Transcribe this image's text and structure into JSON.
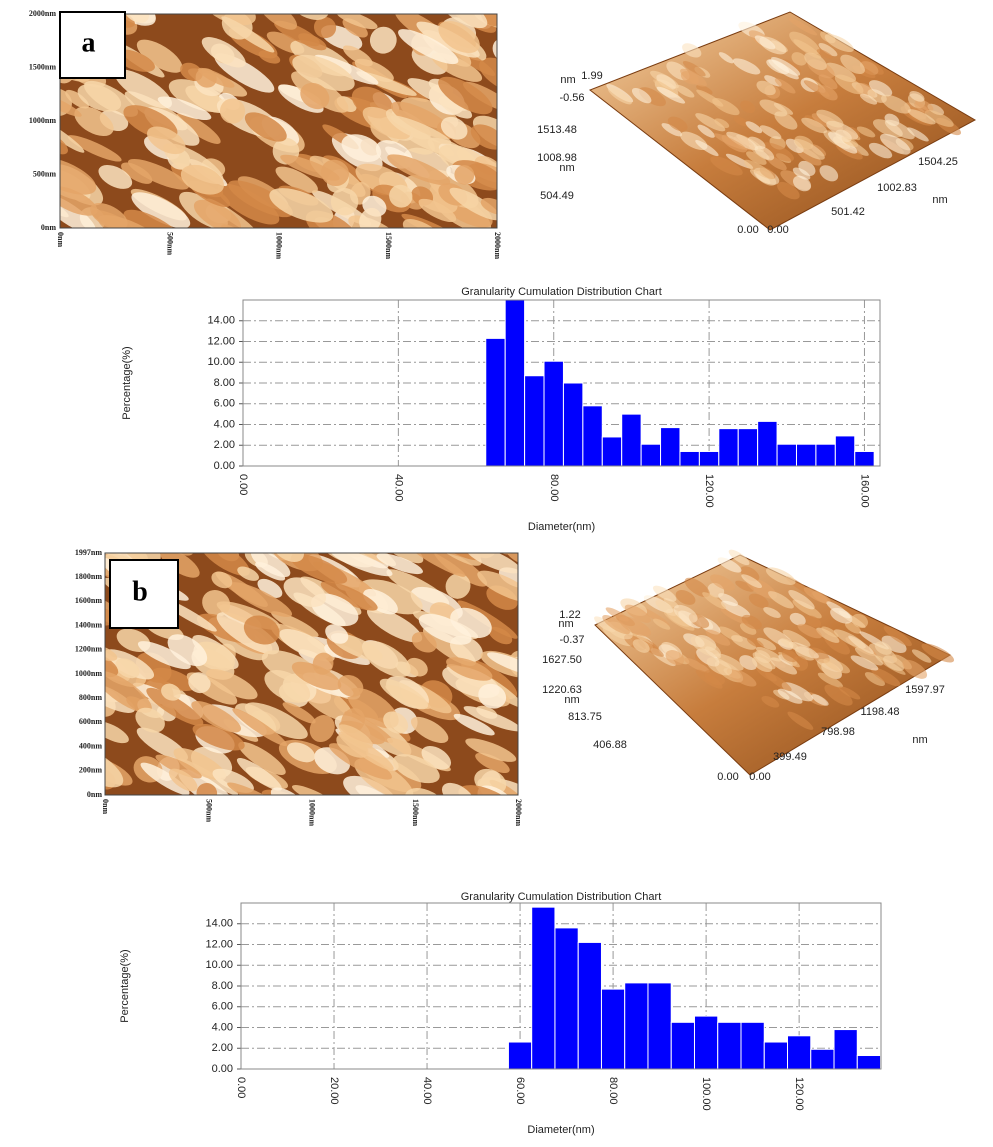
{
  "panels": [
    {
      "label": "a",
      "image_y_labels": [
        "2000nm",
        "1500nm",
        "1000nm",
        "500nm",
        "0nm"
      ],
      "image_x_labels": [
        "0nm",
        "500nm",
        "1000nm",
        "1500nm",
        "2000nm"
      ],
      "surface_labels": [
        "nm",
        "1.99",
        "-0.56",
        "1513.48",
        "1008.98",
        "nm",
        "504.49",
        "0.00",
        "0.00",
        "501.42",
        "1002.83",
        "1504.25",
        "nm"
      ]
    },
    {
      "label": "b",
      "image_y_labels": [
        "1997nm",
        "1800nm",
        "1600nm",
        "1400nm",
        "1200nm",
        "1000nm",
        "800nm",
        "600nm",
        "400nm",
        "200nm",
        "0nm"
      ],
      "image_x_labels": [
        "0nm",
        "500nm",
        "1000nm",
        "1500nm",
        "2000nm"
      ],
      "surface_labels": [
        "1.22",
        "nm",
        "-0.37",
        "1627.50",
        "1220.63",
        "nm",
        "813.75",
        "406.88",
        "0.00",
        "0.00",
        "399.49",
        "798.98",
        "1198.48",
        "1597.97",
        "nm"
      ]
    }
  ],
  "chart_data": [
    {
      "type": "histogram",
      "title": "Granularity Cumulation Distribution  Chart",
      "x_label": "Diameter(nm)",
      "y_label": "Percentage(%)",
      "color": "#0000ff",
      "grid": true,
      "bins": [
        62.5,
        67.5,
        72.5,
        77.5,
        82.5,
        87.5,
        92.5,
        97.5,
        102.5,
        107.5,
        112.5,
        117.5,
        122.5,
        127.5,
        132.5,
        137.5,
        142.5,
        147.5,
        152.5,
        157.5,
        162.5
      ],
      "values": [
        12.3,
        16.0,
        8.7,
        10.1,
        8.0,
        5.8,
        2.8,
        5.0,
        2.1,
        3.7,
        1.4,
        1.4,
        3.6,
        3.6,
        4.3,
        2.1,
        2.1,
        2.1,
        2.9,
        1.4
      ],
      "xlim": [
        0,
        164
      ],
      "ylim": [
        0,
        16
      ],
      "xticks": [
        {
          "value": 0,
          "label": "0.00"
        },
        {
          "value": 40,
          "label": "40.00"
        },
        {
          "value": 80,
          "label": "80.00"
        },
        {
          "value": 120,
          "label": "120.00"
        },
        {
          "value": 160,
          "label": "160.00"
        }
      ],
      "yticks": [
        {
          "value": 0,
          "label": "0.00"
        },
        {
          "value": 2,
          "label": "2.00"
        },
        {
          "value": 4,
          "label": "4.00"
        },
        {
          "value": 6,
          "label": "6.00"
        },
        {
          "value": 8,
          "label": "8.00"
        },
        {
          "value": 10,
          "label": "10.00"
        },
        {
          "value": 12,
          "label": "12.00"
        },
        {
          "value": 14,
          "label": "14.00"
        }
      ]
    },
    {
      "type": "histogram",
      "title": "Granularity Cumulation Distribution  Chart",
      "x_label": "Diameter(nm)",
      "y_label": "Percentage(%)",
      "color": "#0000ff",
      "grid": true,
      "bins": [
        57.5,
        62.5,
        67.5,
        72.5,
        77.5,
        82.5,
        87.5,
        92.5,
        97.5,
        102.5,
        107.5,
        112.5,
        117.5,
        122.5,
        127.5,
        132.5,
        137.5
      ],
      "values": [
        2.6,
        15.6,
        13.6,
        12.2,
        7.7,
        8.3,
        8.3,
        4.5,
        5.1,
        4.5,
        4.5,
        2.6,
        3.2,
        1.9,
        3.8,
        1.3
      ],
      "xlim": [
        0,
        137.6
      ],
      "ylim": [
        0,
        16
      ],
      "xticks": [
        {
          "value": 0,
          "label": "0.00"
        },
        {
          "value": 20,
          "label": "20.00"
        },
        {
          "value": 40,
          "label": "40.00"
        },
        {
          "value": 60,
          "label": "60.00"
        },
        {
          "value": 80,
          "label": "80.00"
        },
        {
          "value": 100,
          "label": "100.00"
        },
        {
          "value": 120,
          "label": "120.00"
        }
      ],
      "yticks": [
        {
          "value": 0,
          "label": "0.00"
        },
        {
          "value": 2,
          "label": "2.00"
        },
        {
          "value": 4,
          "label": "4.00"
        },
        {
          "value": 6,
          "label": "6.00"
        },
        {
          "value": 8,
          "label": "8.00"
        },
        {
          "value": 10,
          "label": "10.00"
        },
        {
          "value": 12,
          "label": "12.00"
        },
        {
          "value": 14,
          "label": "14.00"
        }
      ]
    }
  ]
}
